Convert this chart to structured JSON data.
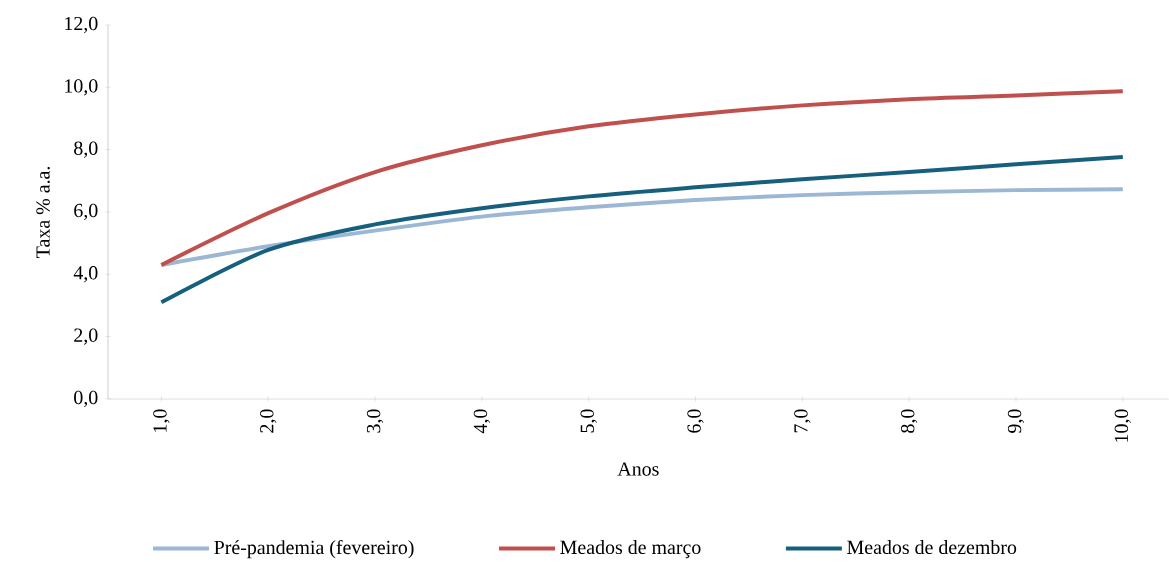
{
  "chart_data": {
    "type": "line",
    "xlabel": "Anos",
    "ylabel": "Taxa % a.a.",
    "x": [
      1,
      2,
      3,
      4,
      5,
      6,
      7,
      8,
      9,
      10
    ],
    "series": [
      {
        "name": "Pré-pandemia (fevereiro)",
        "color": "#9bb7d4",
        "values": [
          4.3,
          4.9,
          5.4,
          5.85,
          6.15,
          6.38,
          6.54,
          6.63,
          6.7,
          6.73
        ]
      },
      {
        "name": "Meados de março",
        "color": "#c0504d",
        "values": [
          4.3,
          5.96,
          7.28,
          8.14,
          8.75,
          9.13,
          9.42,
          9.62,
          9.74,
          9.87
        ]
      },
      {
        "name": "Meados de dezembro",
        "color": "#17607d",
        "values": [
          3.1,
          4.78,
          5.6,
          6.12,
          6.5,
          6.79,
          7.05,
          7.28,
          7.53,
          7.76
        ]
      }
    ],
    "xlim": [
      0.5,
      10.43
    ],
    "ylim": [
      0,
      12
    ],
    "xticks": [
      {
        "value": 1,
        "label": "1,0"
      },
      {
        "value": 2,
        "label": "2,0"
      },
      {
        "value": 3,
        "label": "3,0"
      },
      {
        "value": 4,
        "label": "4,0"
      },
      {
        "value": 5,
        "label": "5,0"
      },
      {
        "value": 6,
        "label": "6,0"
      },
      {
        "value": 7,
        "label": "7,0"
      },
      {
        "value": 8,
        "label": "8,0"
      },
      {
        "value": 9,
        "label": "9,0"
      },
      {
        "value": 10,
        "label": "10,0"
      }
    ],
    "yticks": [
      {
        "value": 0,
        "label": "0,0"
      },
      {
        "value": 2,
        "label": "2,0"
      },
      {
        "value": 4,
        "label": "4,0"
      },
      {
        "value": 6,
        "label": "6,0"
      },
      {
        "value": 8,
        "label": "8,0"
      },
      {
        "value": 10,
        "label": "10,0"
      },
      {
        "value": 12,
        "label": "12,0"
      }
    ],
    "legend": "bottom",
    "grid": false,
    "line_style": "solid"
  }
}
